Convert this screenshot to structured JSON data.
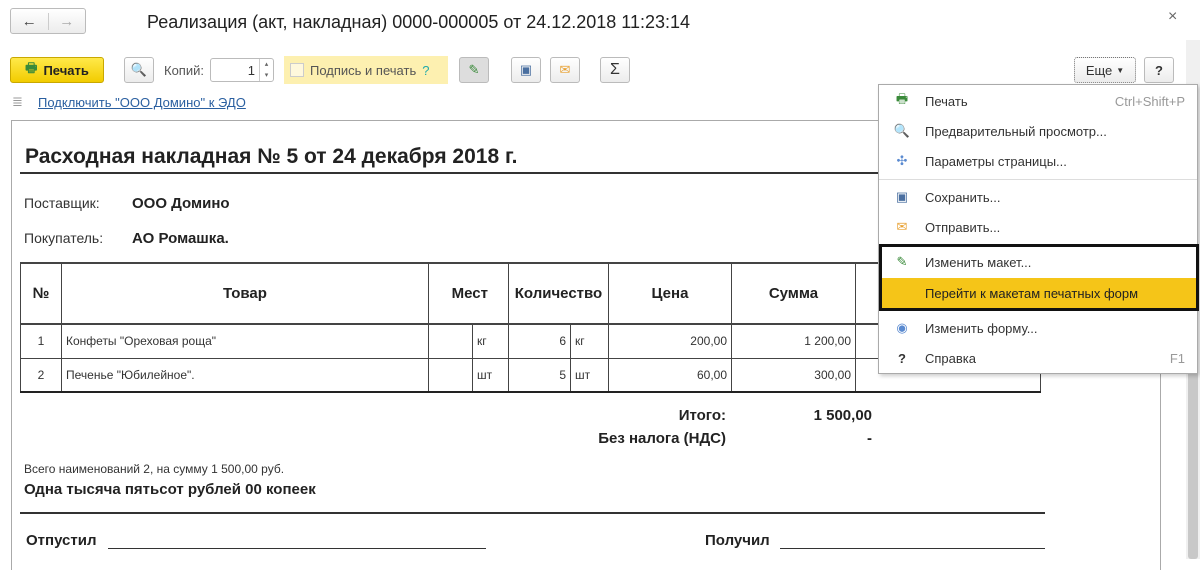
{
  "window": {
    "title": "Реализация (акт, накладная) 0000-000005 от 24.12.2018 11:23:14",
    "back": "←",
    "forward": "→",
    "close": "×"
  },
  "toolbar": {
    "print": "Печать",
    "copies_label": "Копий:",
    "copies_value": "1",
    "sign_print": "Подпись и печать",
    "help_q": "?",
    "more": "Еще",
    "help": "?",
    "sigma": "Σ"
  },
  "edo_link": "Подключить \"ООО Домино\" к ЭДО",
  "document": {
    "heading": "Расходная накладная № 5 от 24 декабря 2018 г.",
    "supplier_label": "Поставщик:",
    "supplier": "ООО Домино",
    "buyer_label": "Покупатель:",
    "buyer": "АО Ромашка.",
    "columns": [
      "№",
      "Товар",
      "Мест",
      "Количество",
      "Цена",
      "Сумма"
    ],
    "rows": [
      {
        "n": "1",
        "item": "Конфеты \"Ореховая роща\"",
        "unit1": "кг",
        "qty": "6",
        "unit2": "кг",
        "price": "200,00",
        "sum": "1 200,00"
      },
      {
        "n": "2",
        "item": "Печенье \"Юбилейное\".",
        "unit1": "шт",
        "qty": "5",
        "unit2": "шт",
        "price": "60,00",
        "sum": "300,00"
      }
    ],
    "total_label": "Итого:",
    "total": "1 500,00",
    "vat_label": "Без налога (НДС)",
    "vat": "-",
    "count_text": "Всего наименований 2, на сумму 1 500,00 руб.",
    "words": "Одна тысяча пятьсот рублей 00 копеек",
    "released": "Отпустил",
    "received": "Получил"
  },
  "menu": {
    "items": [
      {
        "label": "Печать",
        "shortcut": "Ctrl+Shift+P",
        "icon": "printer-icon"
      },
      {
        "label": "Предварительный просмотр...",
        "icon": "preview-icon"
      },
      {
        "label": "Параметры страницы...",
        "icon": "page-settings-icon"
      },
      {
        "label": "Сохранить...",
        "icon": "save-icon"
      },
      {
        "label": "Отправить...",
        "icon": "envelope-icon"
      },
      {
        "label": "Изменить макет...",
        "icon": "edit-icon"
      },
      {
        "label": "Перейти к макетам печатных форм"
      },
      {
        "label": "Изменить форму...",
        "icon": "form-icon"
      },
      {
        "label": "Справка",
        "shortcut": "F1",
        "icon": "help-icon"
      }
    ],
    "highlight_color": "#f5c518"
  }
}
